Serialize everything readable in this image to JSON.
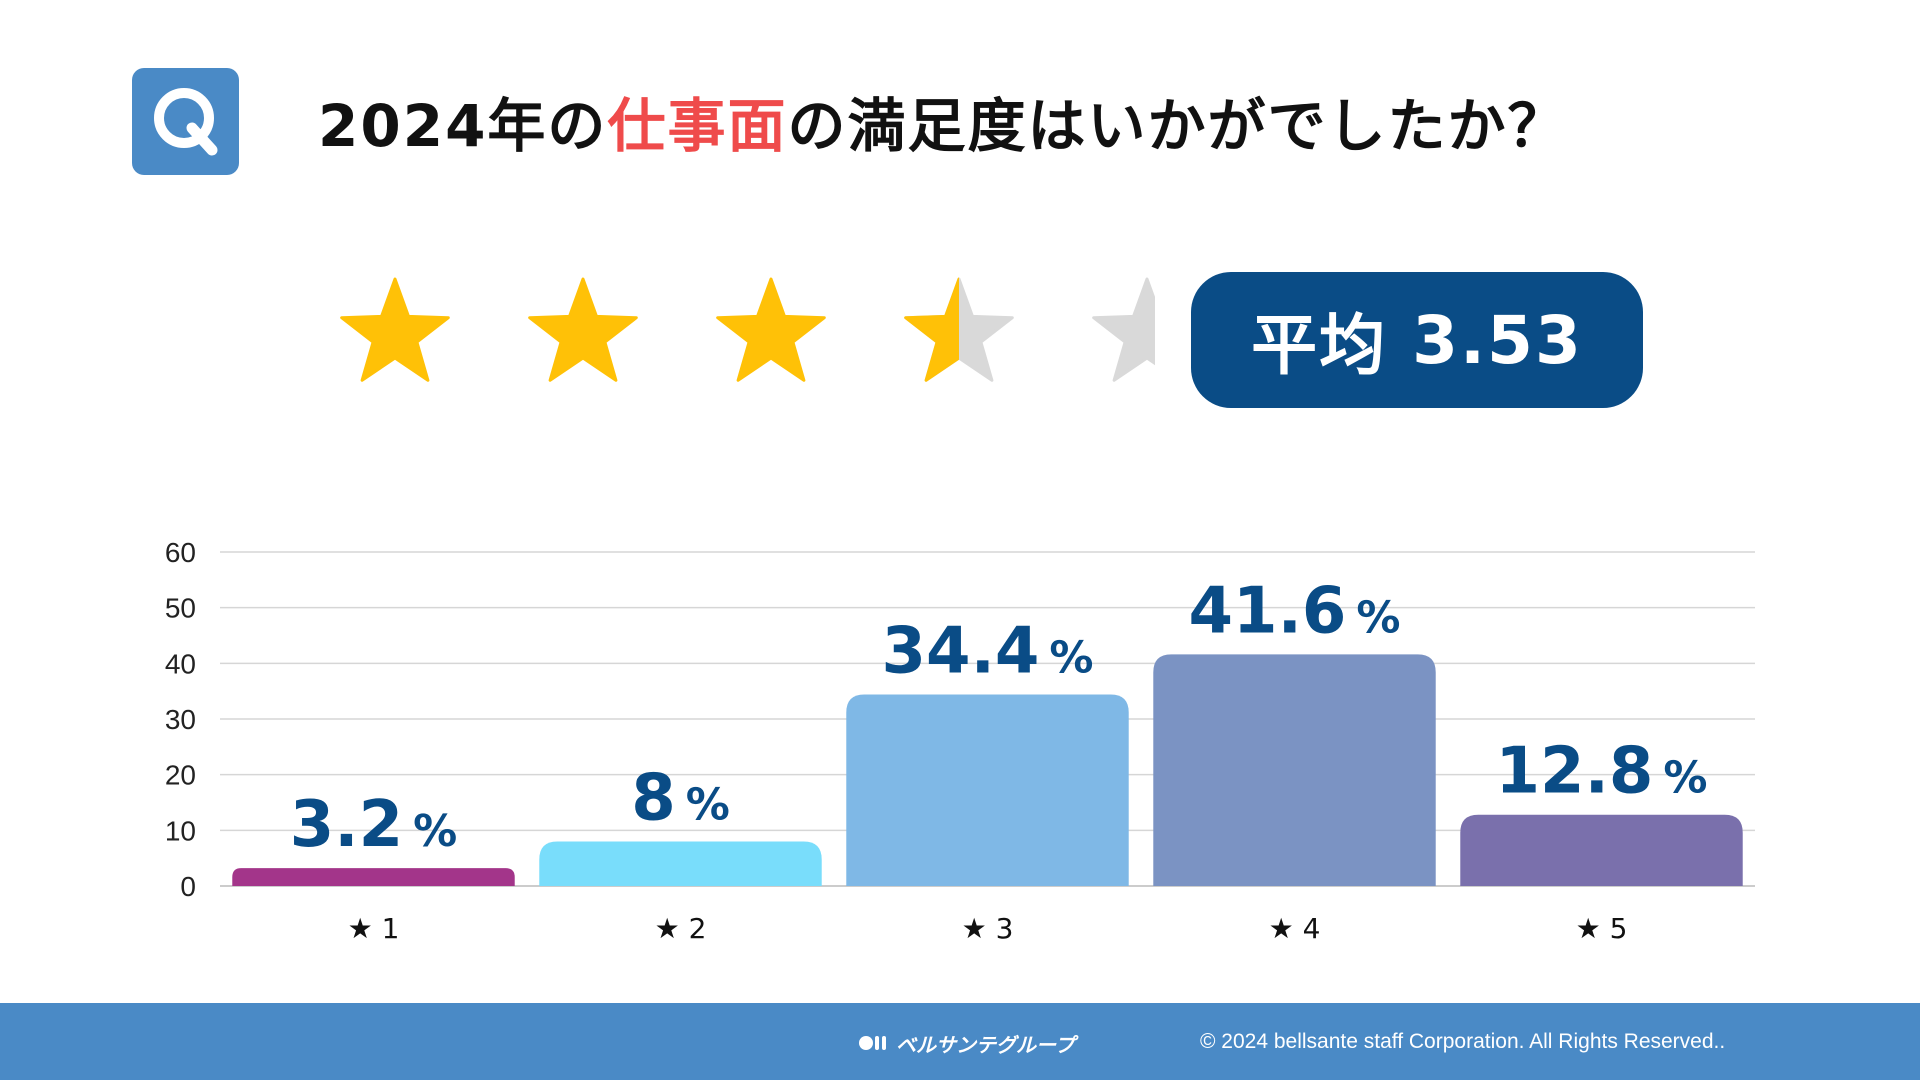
{
  "header": {
    "badge_letter": "Q",
    "title_before": "2024年の",
    "title_accent": "仕事面",
    "title_after": "の満足度はいかがでしたか？"
  },
  "rating": {
    "stars_total": 5,
    "stars_filled": 3.5,
    "average_label": "平均",
    "average_value": "3.53"
  },
  "chart_data": {
    "type": "bar",
    "categories": [
      "★ 1",
      "★ 2",
      "★ 3",
      "★ 4",
      "★ 5"
    ],
    "values": [
      3.2,
      8,
      34.4,
      41.6,
      12.8
    ],
    "data_labels": [
      "3.2",
      "8",
      "34.4",
      "41.6",
      "12.8"
    ],
    "value_unit": "%",
    "ylim": [
      0,
      60
    ],
    "yticks": [
      0,
      10,
      20,
      30,
      40,
      50,
      60
    ],
    "grid": true,
    "colors": [
      "#a3358a",
      "#79ddfb",
      "#7fb8e6",
      "#7b93c3",
      "#7a70ac"
    ],
    "label_color": "#0a4c86"
  },
  "footer": {
    "logo_text": "ベルサンテグループ",
    "copyright": "© 2024 bellsante staff Corporation. All Rights Reserved.."
  },
  "colors": {
    "accent": "#ef4b4b",
    "navy": "#0a4c86",
    "footer_bg": "#4a8ac6",
    "star_gold": "#ffc107",
    "star_gray": "#d9d9d9"
  }
}
